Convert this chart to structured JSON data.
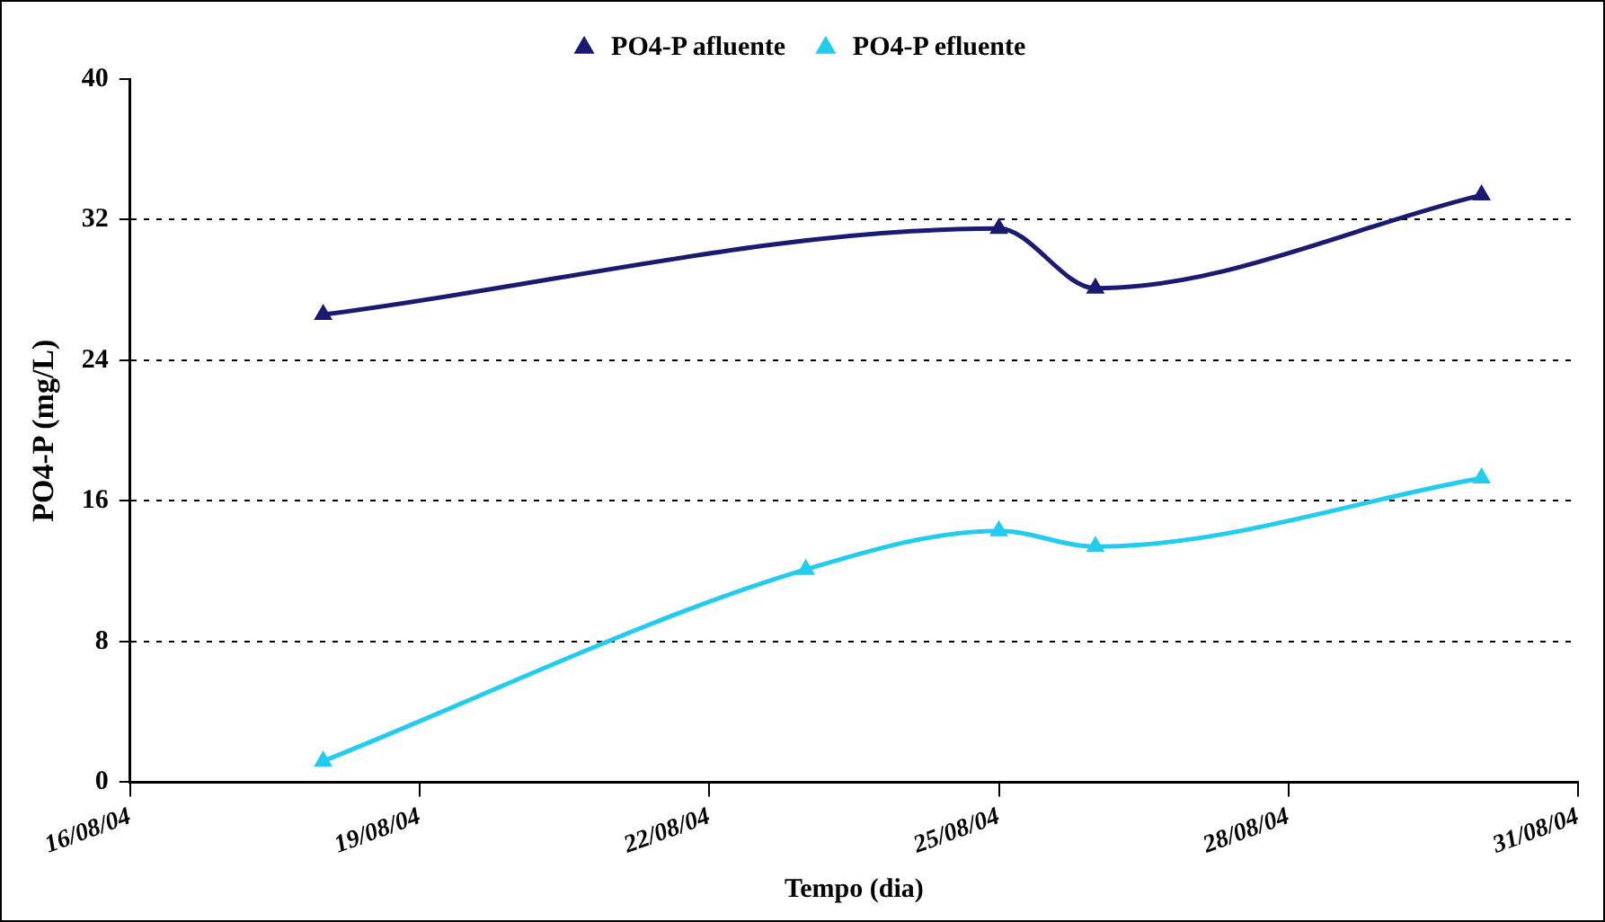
{
  "chart_data": {
    "type": "line",
    "xlabel": "Tempo (dia)",
    "ylabel": "PO4-P (mg/L)",
    "x": [
      "--08-18",
      "--08-25",
      "--08-26",
      "--08-30"
    ],
    "series": [
      {
        "name": "PO4-P afluente",
        "color": "#1a1a72",
        "values": [
          26.6,
          31.5,
          28.1,
          33.4
        ]
      },
      {
        "name": "PO4-P efluente",
        "color": "#22ccee",
        "x": [
          "--08-18",
          "--08-23",
          "--08-25",
          "--08-26",
          "--08-30"
        ],
        "values": [
          1.2,
          12.1,
          14.3,
          13.4,
          17.3
        ]
      }
    ],
    "xlim": [
      "--08-16",
      "--08-31"
    ],
    "xticks": [
      {
        "value": "--08-16",
        "label": "16/08/04"
      },
      {
        "value": "--08-19",
        "label": "19/08/04"
      },
      {
        "value": "--08-22",
        "label": "22/08/04"
      },
      {
        "value": "--08-25",
        "label": "25/08/04"
      },
      {
        "value": "--08-28",
        "label": "28/08/04"
      },
      {
        "value": "--08-31",
        "label": "31/08/04"
      }
    ],
    "ylim": [
      0,
      40
    ],
    "yticks": [
      0,
      8,
      16,
      24,
      32,
      40
    ],
    "grid": "y",
    "legend": "top",
    "marker": "triangle",
    "line_style": "solid"
  }
}
